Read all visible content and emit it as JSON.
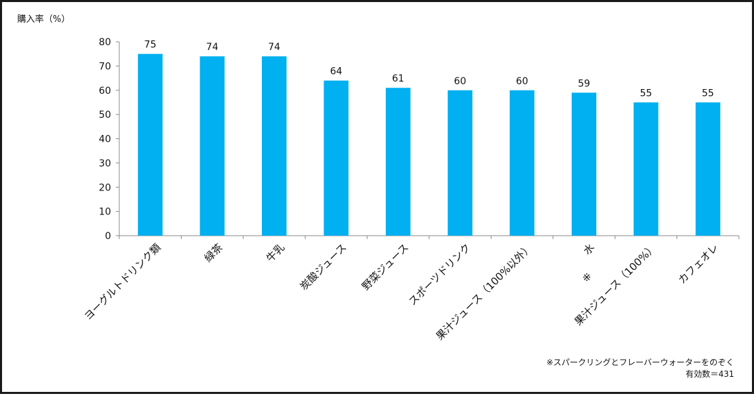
{
  "chart_data": {
    "type": "bar",
    "ylabel": "購入率（%）",
    "ylim": [
      0,
      80
    ],
    "yticks": [
      0,
      10,
      20,
      30,
      40,
      50,
      60,
      70,
      80
    ],
    "categories": [
      "ヨーグルトドリンク類",
      "緑茶",
      "牛乳",
      "炭酸ジュース",
      "野菜ジュース",
      "スポーツドリンク",
      "果汁ジュース（100%以外）",
      "水",
      "果汁ジュース（100%）",
      "カフェオレ"
    ],
    "values": [
      75,
      74,
      74,
      64,
      61,
      60,
      60,
      59,
      55,
      55
    ],
    "category_marks": [
      "",
      "",
      "",
      "",
      "",
      "",
      "",
      "※",
      "",
      ""
    ],
    "bar_color": "#00b0f0",
    "grid": false
  },
  "notes": {
    "footnote": "※スパークリングとフレーバーウォーターをのぞく",
    "sample": "有効数＝431"
  }
}
